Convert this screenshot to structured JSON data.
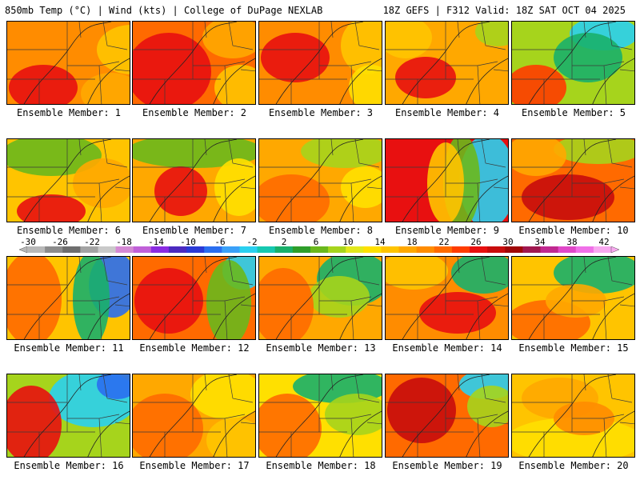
{
  "header": {
    "left": "850mb Temp (°C) | Wind (kts) | College of DuPage NEXLAB",
    "right": "18Z GEFS | F312 Valid: 18Z SAT OCT 04 2025"
  },
  "colorbar": {
    "ticks": [
      "-30",
      "-26",
      "-22",
      "-18",
      "-14",
      "-10",
      "-6",
      "-2",
      "2",
      "6",
      "10",
      "14",
      "18",
      "22",
      "26",
      "30",
      "34",
      "38",
      "42"
    ],
    "colors": [
      "#b8b8b8",
      "#8c8c8c",
      "#6e6e6e",
      "#a3a3a3",
      "#c9c9c9",
      "#d48ad4",
      "#c060d8",
      "#8a2be2",
      "#4b2abf",
      "#2a3ad6",
      "#2a6ef0",
      "#3aa0f8",
      "#2ad0f0",
      "#16c8b0",
      "#19b06a",
      "#2e9e2a",
      "#6ab81c",
      "#a6d41c",
      "#e2e81c",
      "#ffe000",
      "#ffc400",
      "#ffa800",
      "#ff8c00",
      "#ff6a00",
      "#ff3c00",
      "#e81010",
      "#c80c0c",
      "#a00808",
      "#a01850",
      "#c02890",
      "#e048c8",
      "#f070e8",
      "#f8a8f0"
    ]
  },
  "members": [
    {
      "label": "Ensemble Member: 1"
    },
    {
      "label": "Ensemble Member: 2"
    },
    {
      "label": "Ensemble Member: 3"
    },
    {
      "label": "Ensemble Member: 4"
    },
    {
      "label": "Ensemble Member: 5"
    },
    {
      "label": "Ensemble Member: 6"
    },
    {
      "label": "Ensemble Member: 7"
    },
    {
      "label": "Ensemble Member: 8"
    },
    {
      "label": "Ensemble Member: 9"
    },
    {
      "label": "Ensemble Member: 10"
    },
    {
      "label": "Ensemble Member: 11"
    },
    {
      "label": "Ensemble Member: 12"
    },
    {
      "label": "Ensemble Member: 13"
    },
    {
      "label": "Ensemble Member: 14"
    },
    {
      "label": "Ensemble Member: 15"
    },
    {
      "label": "Ensemble Member: 16"
    },
    {
      "label": "Ensemble Member: 17"
    },
    {
      "label": "Ensemble Member: 18"
    },
    {
      "label": "Ensemble Member: 19"
    },
    {
      "label": "Ensemble Member: 20"
    }
  ]
}
